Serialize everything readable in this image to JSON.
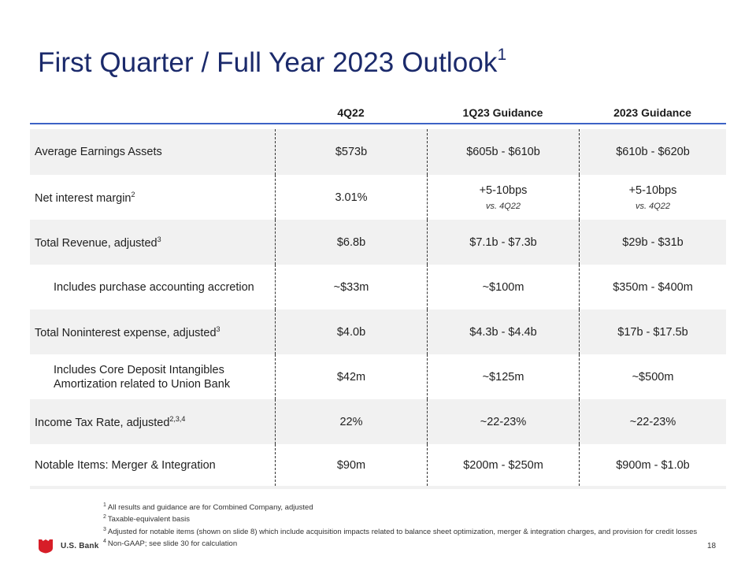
{
  "slide": {
    "title": "First Quarter / Full Year 2023 Outlook",
    "title_sup": "1",
    "page_number": "18"
  },
  "table": {
    "headers": [
      "",
      "4Q22",
      "1Q23 Guidance",
      "2023 Guidance"
    ],
    "rows": [
      {
        "label": "Average Earnings Assets",
        "sup": "",
        "c1": "$573b",
        "c2": "$605b - $610b",
        "c3": "$610b - $620b"
      },
      {
        "label": "Net interest margin",
        "sup": "2",
        "c1": "3.01%",
        "c2": "+5-10bps",
        "c2_sub": "vs. 4Q22",
        "c3": "+5-10bps",
        "c3_sub": "vs. 4Q22"
      },
      {
        "label": "Total Revenue, adjusted",
        "sup": "3",
        "c1": "$6.8b",
        "c2": "$7.1b - $7.3b",
        "c3": "$29b - $31b"
      },
      {
        "label": "Includes purchase accounting accretion",
        "sup": "",
        "c1": "~$33m",
        "c2": "~$100m",
        "c3": "$350m - $400m"
      },
      {
        "label": "Total Noninterest expense, adjusted",
        "sup": "3",
        "c1": "$4.0b",
        "c2": "$4.3b - $4.4b",
        "c3": "$17b - $17.5b"
      },
      {
        "label": "Includes Core Deposit Intangibles",
        "label2": "Amortization related to Union Bank",
        "sup": "",
        "c1": "$42m",
        "c2": "~$125m",
        "c3": "~$500m"
      },
      {
        "label": "Income Tax Rate, adjusted",
        "sup": "2,3,4",
        "c1": "22%",
        "c2": "~22-23%",
        "c3": "~22-23%"
      },
      {
        "label": "Notable Items: Merger & Integration",
        "sup": "",
        "c1": "$90m",
        "c2": "$200m - $250m",
        "c3": "$900m - $1.0b"
      }
    ]
  },
  "footnotes": [
    {
      "num": "1",
      "text": "All results and guidance are for Combined Company, adjusted"
    },
    {
      "num": "2",
      "text": "Taxable-equivalent basis"
    },
    {
      "num": "3",
      "text": "Adjusted for notable items (shown on slide 8) which include acquisition impacts related to balance sheet optimization, merger & integration charges, and provision for credit losses"
    },
    {
      "num": "4",
      "text": "Non-GAAP; see slide 30 for calculation"
    }
  ],
  "logo": {
    "text": "U.S. Bank",
    "icon": "usbank-shield-icon"
  },
  "colors": {
    "title": "#1b2a6b",
    "header_rule": "#3d63c6",
    "row_shade": "#f1f1f1",
    "logo_red": "#d71e28"
  }
}
